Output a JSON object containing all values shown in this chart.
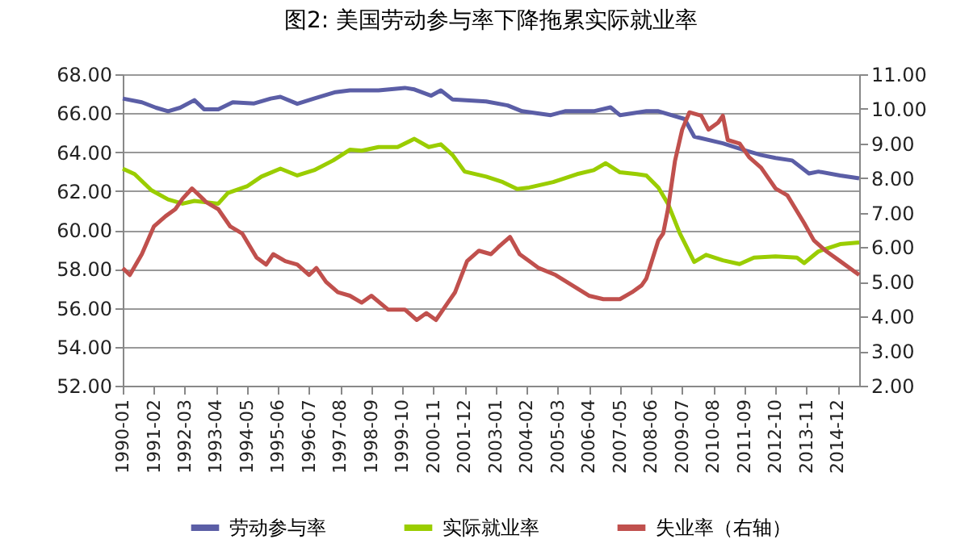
{
  "chart_data": {
    "type": "line",
    "title": "图2: 美国劳动参与率下降拖累实际就业率",
    "xlim": [
      "1990-01",
      "2015-09"
    ],
    "xticks": [
      "1990-01",
      "1991-02",
      "1992-03",
      "1993-04",
      "1994-05",
      "1995-06",
      "1996-07",
      "1997-08",
      "1998-09",
      "1999-10",
      "2000-11",
      "2001-12",
      "2003-01",
      "2004-02",
      "2005-03",
      "2006-04",
      "2007-05",
      "2008-06",
      "2009-07",
      "2010-08",
      "2011-09",
      "2012-10",
      "2013-11",
      "2014-12"
    ],
    "ylim": [
      52,
      68
    ],
    "yticks": [
      {
        "value": 52,
        "label": "52.00"
      },
      {
        "value": 54,
        "label": "54.00"
      },
      {
        "value": 56,
        "label": "56.00"
      },
      {
        "value": 58,
        "label": "58.00"
      },
      {
        "value": 60,
        "label": "60.00"
      },
      {
        "value": 62,
        "label": "62.00"
      },
      {
        "value": 64,
        "label": "64.00"
      },
      {
        "value": 66,
        "label": "66.00"
      },
      {
        "value": 68,
        "label": "68.00"
      }
    ],
    "y2lim": [
      2,
      11
    ],
    "y2ticks": [
      {
        "value": 2,
        "label": "2.00"
      },
      {
        "value": 3,
        "label": "3.00"
      },
      {
        "value": 4,
        "label": "4.00"
      },
      {
        "value": 5,
        "label": "5.00"
      },
      {
        "value": 6,
        "label": "6.00"
      },
      {
        "value": 7,
        "label": "7.00"
      },
      {
        "value": 8,
        "label": "8.00"
      },
      {
        "value": 9,
        "label": "9.00"
      },
      {
        "value": 10,
        "label": "10.00"
      },
      {
        "value": 11,
        "label": "11.00"
      }
    ],
    "grid": "y",
    "legend": "bottom",
    "series": [
      {
        "name": "劳动参与率",
        "color": "#5b5ea6",
        "x": [
          "1990-01",
          "1990-09",
          "1991-03",
          "1991-08",
          "1992-01",
          "1992-07",
          "1992-11",
          "1993-05",
          "1993-11",
          "1994-08",
          "1995-03",
          "1995-07",
          "1996-02",
          "1996-09",
          "1997-06",
          "1997-12",
          "1998-12",
          "1999-11",
          "2000-03",
          "2000-10",
          "2001-02",
          "2001-07",
          "2002-09",
          "2003-06",
          "2003-12",
          "2004-12",
          "2005-06",
          "2006-06",
          "2007-01",
          "2007-05",
          "2008-04",
          "2008-09",
          "2009-08",
          "2009-12",
          "2010-12",
          "2011-09",
          "2012-04",
          "2012-10",
          "2013-05",
          "2013-12",
          "2014-04",
          "2015-01",
          "2015-09"
        ],
        "values": [
          66.75,
          66.56,
          66.28,
          66.1,
          66.28,
          66.67,
          66.2,
          66.2,
          66.56,
          66.5,
          66.75,
          66.84,
          66.48,
          66.75,
          67.08,
          67.17,
          67.17,
          67.3,
          67.22,
          66.9,
          67.17,
          66.7,
          66.6,
          66.4,
          66.1,
          65.9,
          66.1,
          66.1,
          66.3,
          65.9,
          66.1,
          66.1,
          65.7,
          64.8,
          64.45,
          64.1,
          63.85,
          63.7,
          63.57,
          62.9,
          63.0,
          62.8,
          62.65
        ]
      },
      {
        "name": "实际就业率",
        "color": "#9acd00",
        "x": [
          "1990-01",
          "1990-06",
          "1991-01",
          "1991-08",
          "1992-02",
          "1992-07",
          "1993-05",
          "1993-09",
          "1994-05",
          "1994-11",
          "1995-07",
          "1996-02",
          "1996-09",
          "1997-05",
          "1997-12",
          "1998-05",
          "1998-12",
          "1999-08",
          "2000-03",
          "2000-09",
          "2001-02",
          "2001-07",
          "2001-12",
          "2002-09",
          "2003-04",
          "2003-10",
          "2004-03",
          "2005-01",
          "2005-11",
          "2006-06",
          "2006-11",
          "2007-05",
          "2007-12",
          "2008-04",
          "2008-09",
          "2009-01",
          "2009-06",
          "2009-12",
          "2010-05",
          "2010-12",
          "2011-07",
          "2012-01",
          "2012-10",
          "2013-07",
          "2013-10",
          "2014-04",
          "2015-01",
          "2015-09"
        ],
        "values": [
          63.15,
          62.87,
          62.04,
          61.57,
          61.35,
          61.49,
          61.35,
          61.9,
          62.24,
          62.74,
          63.15,
          62.8,
          63.07,
          63.57,
          64.12,
          64.07,
          64.26,
          64.26,
          64.68,
          64.26,
          64.4,
          63.85,
          63.0,
          62.74,
          62.46,
          62.1,
          62.18,
          62.46,
          62.87,
          63.07,
          63.43,
          62.96,
          62.87,
          62.8,
          62.18,
          61.35,
          59.83,
          58.36,
          58.72,
          58.44,
          58.25,
          58.58,
          58.64,
          58.58,
          58.3,
          58.9,
          59.27,
          59.36
        ]
      },
      {
        "name": "失业率（右轴）",
        "color": "#c0504d",
        "axis": "y2",
        "x": [
          "1990-01",
          "1990-04",
          "1990-09",
          "1991-02",
          "1991-07",
          "1991-11",
          "1992-02",
          "1992-06",
          "1992-12",
          "1993-05",
          "1993-10",
          "1994-03",
          "1994-09",
          "1995-01",
          "1995-04",
          "1995-09",
          "1996-02",
          "1996-07",
          "1996-10",
          "1997-02",
          "1997-07",
          "1997-12",
          "1998-05",
          "1998-09",
          "1999-04",
          "1999-11",
          "2000-04",
          "2000-08",
          "2000-12",
          "2001-05",
          "2001-08",
          "2002-01",
          "2002-06",
          "2002-11",
          "2003-02",
          "2003-07",
          "2003-11",
          "2004-03",
          "2004-07",
          "2005-02",
          "2005-09",
          "2006-04",
          "2006-10",
          "2007-05",
          "2007-10",
          "2008-02",
          "2008-04",
          "2008-09",
          "2008-11",
          "2009-01",
          "2009-04",
          "2009-07",
          "2009-10",
          "2010-03",
          "2010-06",
          "2010-10",
          "2010-12",
          "2011-02",
          "2011-07",
          "2011-11",
          "2012-04",
          "2012-07",
          "2012-10",
          "2013-03",
          "2013-10",
          "2014-02",
          "2014-07",
          "2015-01",
          "2015-09"
        ],
        "values": [
          5.4,
          5.2,
          5.8,
          6.6,
          6.9,
          7.1,
          7.4,
          7.7,
          7.3,
          7.1,
          6.6,
          6.4,
          5.7,
          5.5,
          5.8,
          5.6,
          5.5,
          5.2,
          5.4,
          5.0,
          4.7,
          4.6,
          4.4,
          4.6,
          4.2,
          4.2,
          3.9,
          4.1,
          3.9,
          4.4,
          4.7,
          5.6,
          5.9,
          5.8,
          6.0,
          6.3,
          5.8,
          5.6,
          5.4,
          5.2,
          4.9,
          4.6,
          4.5,
          4.5,
          4.7,
          4.9,
          5.1,
          6.2,
          6.4,
          7.1,
          8.5,
          9.4,
          9.9,
          9.8,
          9.4,
          9.6,
          9.8,
          9.1,
          9.0,
          8.6,
          8.3,
          8.0,
          7.7,
          7.5,
          6.7,
          6.2,
          5.9,
          5.6,
          5.2
        ]
      }
    ]
  }
}
